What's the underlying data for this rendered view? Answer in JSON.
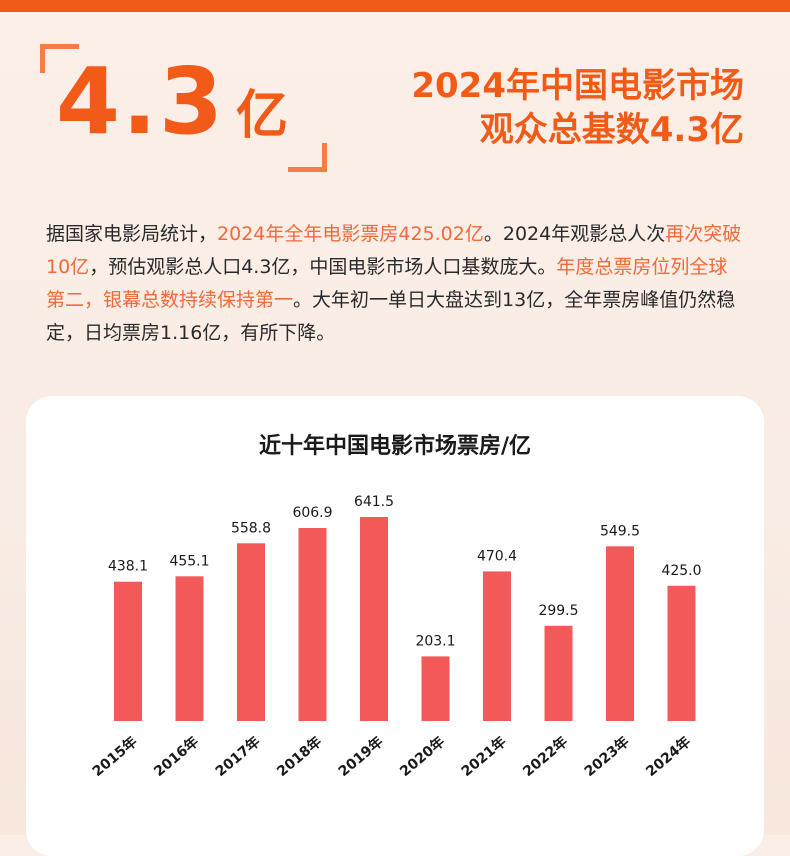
{
  "colors": {
    "accent": "#f15a17",
    "highlight": "#f06a3a",
    "bar": "#f25a5a"
  },
  "hero": {
    "number": "4.3",
    "unit": "亿",
    "headline_line1": "2024年中国电影市场",
    "headline_line2": "观众总基数4.3亿"
  },
  "paragraph": {
    "p1": "据国家电影局统计，",
    "p1_hl": "2024年全年电影票房425.02亿",
    "p2": "。2024年观影总人次",
    "p2_hl": "再次突破10亿",
    "p3": "，预估观影总人口4.3亿，中国电影市场人口基数庞大。",
    "p3_hl": "年度总票房位列全球第二，银幕总数持续保持第一",
    "p4": "。大年初一单日大盘达到13亿，全年票房峰值仍然稳定，日均票房1.16亿，有所下降。"
  },
  "chart_data": {
    "type": "bar",
    "title": "近十年中国电影市场票房/亿",
    "categories": [
      "2015年",
      "2016年",
      "2017年",
      "2018年",
      "2019年",
      "2020年",
      "2021年",
      "2022年",
      "2023年",
      "2024年"
    ],
    "values": [
      438.1,
      455.1,
      558.8,
      606.9,
      641.5,
      203.1,
      470.4,
      299.5,
      549.5,
      425.0
    ],
    "value_labels": [
      "438.1",
      "455.1",
      "558.8",
      "606.9",
      "641.5",
      "203.1",
      "470.4",
      "299.5",
      "549.5",
      "425.0"
    ],
    "ylim": [
      0,
      641.5
    ],
    "grid": false,
    "legend": "none"
  }
}
